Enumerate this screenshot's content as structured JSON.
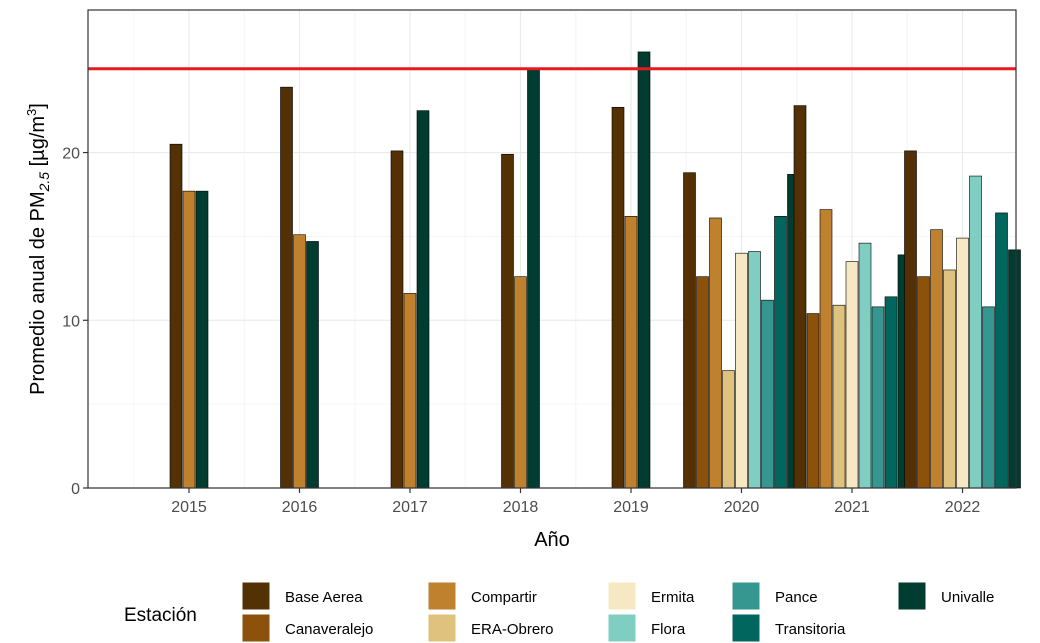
{
  "chart_data": {
    "type": "bar",
    "xlabel": "Año",
    "ylabel_prefix": "Promedio anual de  PM",
    "ylabel_sub": "2.5",
    "ylabel_unit": " [µg/m",
    "ylabel_sup": "3",
    "ylabel_close": "]",
    "ylim": [
      0,
      28.5
    ],
    "yticks": [
      0,
      10,
      20
    ],
    "grid": true,
    "legend_position": "bottom",
    "legend_title": "Estación",
    "reference_line": {
      "y": 25,
      "color": "#e8191f"
    },
    "categories": [
      "2015",
      "2016",
      "2017",
      "2018",
      "2019",
      "2020",
      "2021",
      "2022"
    ],
    "series": [
      {
        "name": "Base Aerea",
        "color": "#543005",
        "values": [
          20.5,
          23.9,
          20.1,
          19.9,
          22.7,
          18.8,
          22.8,
          20.1
        ]
      },
      {
        "name": "Canaveralejo",
        "color": "#8c510a",
        "values": [
          null,
          null,
          null,
          null,
          null,
          12.6,
          10.4,
          12.6
        ]
      },
      {
        "name": "Compartir",
        "color": "#bf812d",
        "values": [
          17.7,
          15.1,
          11.6,
          12.6,
          16.2,
          16.1,
          16.6,
          15.4
        ]
      },
      {
        "name": "ERA-Obrero",
        "color": "#dfc27d",
        "values": [
          null,
          null,
          null,
          null,
          null,
          7.0,
          10.9,
          13.0
        ]
      },
      {
        "name": "Ermita",
        "color": "#f6e8c3",
        "values": [
          null,
          null,
          null,
          null,
          null,
          14.0,
          13.5,
          14.9
        ]
      },
      {
        "name": "Flora",
        "color": "#80cdc1",
        "values": [
          null,
          null,
          null,
          null,
          null,
          14.1,
          14.6,
          18.6
        ]
      },
      {
        "name": "Pance",
        "color": "#35978f",
        "values": [
          null,
          null,
          null,
          null,
          null,
          11.2,
          10.8,
          10.8
        ]
      },
      {
        "name": "Transitoria",
        "color": "#01665e",
        "values": [
          null,
          null,
          null,
          null,
          null,
          16.2,
          11.4,
          16.4
        ]
      },
      {
        "name": "Univalle",
        "color": "#003c30",
        "values": [
          17.7,
          14.7,
          22.5,
          25.0,
          26.0,
          18.7,
          13.9,
          14.2
        ]
      }
    ]
  }
}
